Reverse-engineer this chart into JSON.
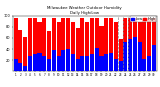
{
  "title": "Milwaukee Weather Outdoor Humidity",
  "subtitle": "Daily High/Low",
  "high_color": "#ff0000",
  "low_color": "#0000ff",
  "background_color": "#ffffff",
  "legend_high": "High",
  "legend_low": "Low",
  "ylim": [
    0,
    100
  ],
  "high_values": [
    95,
    75,
    62,
    95,
    95,
    88,
    95,
    72,
    95,
    88,
    95,
    95,
    88,
    78,
    95,
    88,
    95,
    95,
    82,
    95,
    95,
    88,
    58,
    95,
    95,
    95,
    88,
    95,
    95,
    95
  ],
  "low_values": [
    22,
    15,
    10,
    28,
    32,
    33,
    28,
    22,
    38,
    28,
    38,
    40,
    32,
    22,
    28,
    28,
    32,
    42,
    28,
    32,
    33,
    22,
    18,
    52,
    58,
    62,
    52,
    22,
    28,
    48
  ],
  "bar_width": 0.85,
  "dashed_indices": [
    22,
    23
  ],
  "yticks": [
    20,
    40,
    60,
    80,
    100
  ],
  "n_bars": 30
}
